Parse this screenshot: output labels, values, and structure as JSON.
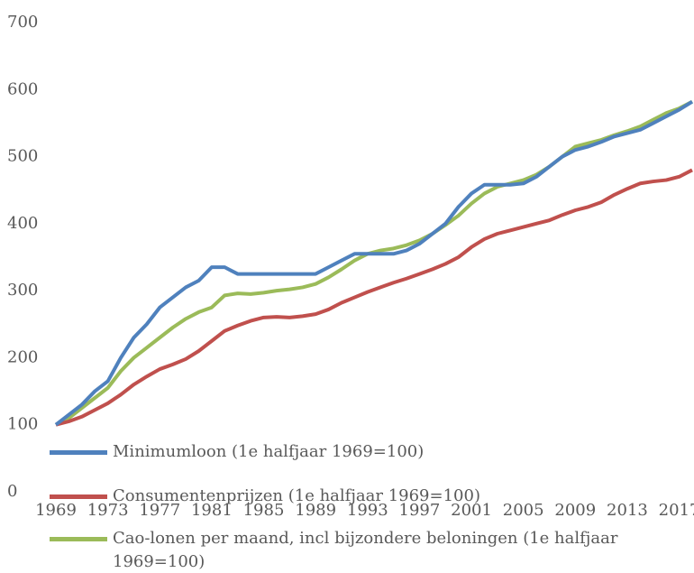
{
  "chart_data": {
    "type": "line",
    "categories": [
      "1969",
      null,
      null,
      null,
      "1973",
      null,
      null,
      null,
      "1977",
      null,
      null,
      null,
      "1981",
      null,
      null,
      null,
      "1985",
      null,
      null,
      null,
      "1989",
      null,
      null,
      null,
      "1993",
      null,
      null,
      null,
      "1997",
      null,
      null,
      null,
      "2001",
      null,
      null,
      null,
      "2005",
      null,
      null,
      null,
      "2009",
      null,
      null,
      null,
      "2013",
      null,
      null,
      null,
      "2017",
      null
    ],
    "ylim": [
      0,
      700
    ],
    "yticks": [
      0,
      100,
      200,
      300,
      400,
      500,
      600,
      700
    ],
    "series": [
      {
        "name": "Minimumloon (1e halfjaar 1969=100)",
        "color": "#4f81bd",
        "values": [
          100,
          115,
          130,
          150,
          165,
          200,
          230,
          250,
          275,
          290,
          305,
          315,
          335,
          335,
          325,
          325,
          325,
          325,
          325,
          325,
          325,
          335,
          345,
          355,
          355,
          355,
          355,
          360,
          370,
          385,
          400,
          425,
          445,
          458,
          458,
          458,
          460,
          470,
          485,
          500,
          510,
          515,
          522,
          530,
          535,
          540,
          550,
          560,
          570,
          582
        ]
      },
      {
        "name": "Consumentenprijzen (1e halfjaar 1969=100)",
        "color": "#c0504d",
        "values": [
          100,
          105,
          112,
          122,
          132,
          145,
          160,
          172,
          183,
          190,
          198,
          210,
          225,
          240,
          248,
          255,
          260,
          261,
          260,
          262,
          265,
          272,
          282,
          290,
          298,
          305,
          312,
          318,
          325,
          332,
          340,
          350,
          365,
          377,
          385,
          390,
          395,
          400,
          405,
          413,
          420,
          425,
          432,
          443,
          452,
          460,
          463,
          465,
          470,
          480
        ]
      },
      {
        "name": "Cao-lonen per maand, incl bijzondere beloningen (1e halfjaar 1969=100)",
        "color": "#9bbb59",
        "values": [
          100,
          110,
          125,
          140,
          155,
          180,
          200,
          215,
          230,
          245,
          258,
          268,
          275,
          293,
          296,
          295,
          297,
          300,
          302,
          305,
          310,
          320,
          332,
          345,
          355,
          360,
          363,
          368,
          375,
          385,
          398,
          412,
          430,
          445,
          455,
          460,
          465,
          473,
          485,
          500,
          515,
          520,
          525,
          532,
          538,
          545,
          555,
          565,
          572,
          582
        ]
      }
    ]
  }
}
